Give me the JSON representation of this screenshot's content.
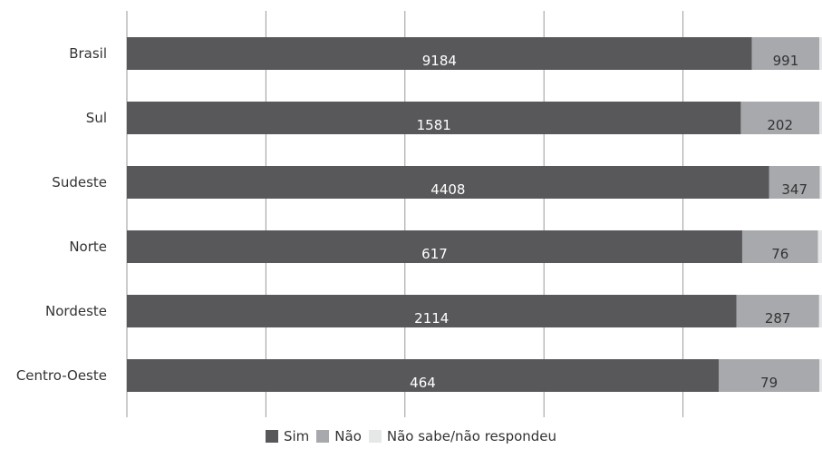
{
  "chart_data": {
    "type": "bar",
    "orientation": "horizontal",
    "stacked": "percent",
    "categories": [
      "Brasil",
      "Sul",
      "Sudeste",
      "Norte",
      "Nordeste",
      "Centro-Oeste"
    ],
    "series": [
      {
        "name": "Sim",
        "values": [
          9184,
          1581,
          4408,
          617,
          2114,
          464
        ],
        "color": "#58585a"
      },
      {
        "name": "Não",
        "values": [
          991,
          202,
          347,
          76,
          287,
          79
        ],
        "color": "#a7a9ac"
      },
      {
        "name": "Não sabe/não respondeu",
        "values": [
          38,
          7,
          15,
          4,
          10,
          2
        ],
        "color": "#e6e7e8"
      }
    ],
    "xlim": [
      0,
      100
    ],
    "grid": true,
    "legend_position": "bottom"
  }
}
